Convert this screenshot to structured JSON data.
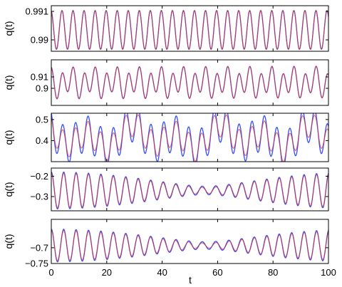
{
  "figure": {
    "x_axis": {
      "label": "t",
      "range": [
        0,
        100
      ],
      "ticks": [
        0,
        20,
        40,
        60,
        80,
        100
      ],
      "tick_labels": [
        "0",
        "20",
        "40",
        "60",
        "80",
        "100"
      ]
    },
    "colors": {
      "series_blue": "#1f3bff",
      "series_red": "#e0312b",
      "overlap": "#8a2aa0",
      "axes": "#000000"
    }
  },
  "chart_data": [
    {
      "type": "line",
      "panel": 1,
      "ylabel": "q(t)",
      "xlim": [
        0,
        100
      ],
      "ylim": [
        0.9896,
        0.9912
      ],
      "yticks": [
        0.99,
        0.991
      ],
      "ytick_labels": [
        "0.99",
        "0.991"
      ],
      "xticks": [
        0,
        20,
        40,
        60,
        80,
        100
      ],
      "xtick_labels": [],
      "signal": {
        "mean": 0.99035,
        "components": [
          [
            0.00068,
            25.1,
            0.2
          ]
        ],
        "period_variation": 0.0,
        "blue_extra_amp": 0.0
      },
      "series": [
        {
          "color": "#1f3bff"
        },
        {
          "color": "#e0312b"
        }
      ]
    },
    {
      "type": "line",
      "panel": 2,
      "ylabel": "q(t)",
      "xlim": [
        0,
        100
      ],
      "ylim": [
        0.885,
        0.925
      ],
      "yticks": [
        0.9,
        0.91
      ],
      "ytick_labels": [
        "0.9",
        "0.91"
      ],
      "xticks": [
        0,
        20,
        40,
        60,
        80,
        100
      ],
      "xtick_labels": [],
      "signal": {
        "mean": 0.905,
        "components": [
          [
            0.011,
            25.1,
            0.0
          ],
          [
            0.004,
            12.5,
            0.9
          ]
        ],
        "period_variation": 0.0,
        "blue_extra_amp": 0.0
      },
      "series": [
        {
          "color": "#1f3bff"
        },
        {
          "color": "#e0312b"
        }
      ]
    },
    {
      "type": "line",
      "panel": 3,
      "ylabel": "q(t)",
      "xlim": [
        0,
        100
      ],
      "ylim": [
        0.3,
        0.53
      ],
      "yticks": [
        0.4,
        0.5
      ],
      "ytick_labels": [
        "0.4",
        "0.5"
      ],
      "xticks": [
        0,
        20,
        40,
        60,
        80,
        100
      ],
      "xtick_labels": [],
      "signal": {
        "mean": 0.415,
        "components": [
          [
            0.06,
            22.0,
            0.5
          ],
          [
            0.04,
            6.3,
            1.1
          ],
          [
            0.025,
            3.1,
            0.2
          ]
        ],
        "period_variation": 0.0,
        "blue_extra_amp": 0.025
      },
      "series": [
        {
          "color": "#1f3bff"
        },
        {
          "color": "#e0312b"
        }
      ]
    },
    {
      "type": "line",
      "panel": 4,
      "ylabel": "q(t)",
      "xlim": [
        0,
        100
      ],
      "ylim": [
        -0.37,
        -0.16
      ],
      "yticks": [
        -0.3,
        -0.2
      ],
      "ytick_labels": [
        "−0.3",
        "−0.2"
      ],
      "xticks": [
        0,
        20,
        40,
        60,
        80,
        100
      ],
      "xtick_labels": [],
      "signal": {
        "mean": -0.27,
        "components": [
          [
            0.05,
            22.0,
            0.0
          ],
          [
            0.035,
            22.9,
            0.0
          ]
        ],
        "period_variation": 0.0,
        "blue_extra_amp": 0.006
      },
      "series": [
        {
          "color": "#1f3bff"
        },
        {
          "color": "#e0312b"
        }
      ]
    },
    {
      "type": "line",
      "panel": 5,
      "ylabel": "q(t)",
      "xlim": [
        0,
        100
      ],
      "ylim": [
        -0.75,
        -0.61
      ],
      "yticks": [
        -0.75,
        -0.7
      ],
      "ytick_labels": [
        "−0.75",
        "−0.7"
      ],
      "xticks": [
        0,
        20,
        40,
        60,
        80,
        100
      ],
      "xtick_labels": [
        "0",
        "20",
        "40",
        "60",
        "80",
        "100"
      ],
      "signal": {
        "mean": -0.693,
        "components": [
          [
            0.028,
            22.0,
            0.0
          ],
          [
            0.02,
            22.9,
            0.0
          ]
        ],
        "period_variation": 0.0,
        "blue_extra_amp": 0.004
      },
      "series": [
        {
          "color": "#1f3bff"
        },
        {
          "color": "#e0312b"
        }
      ]
    }
  ]
}
